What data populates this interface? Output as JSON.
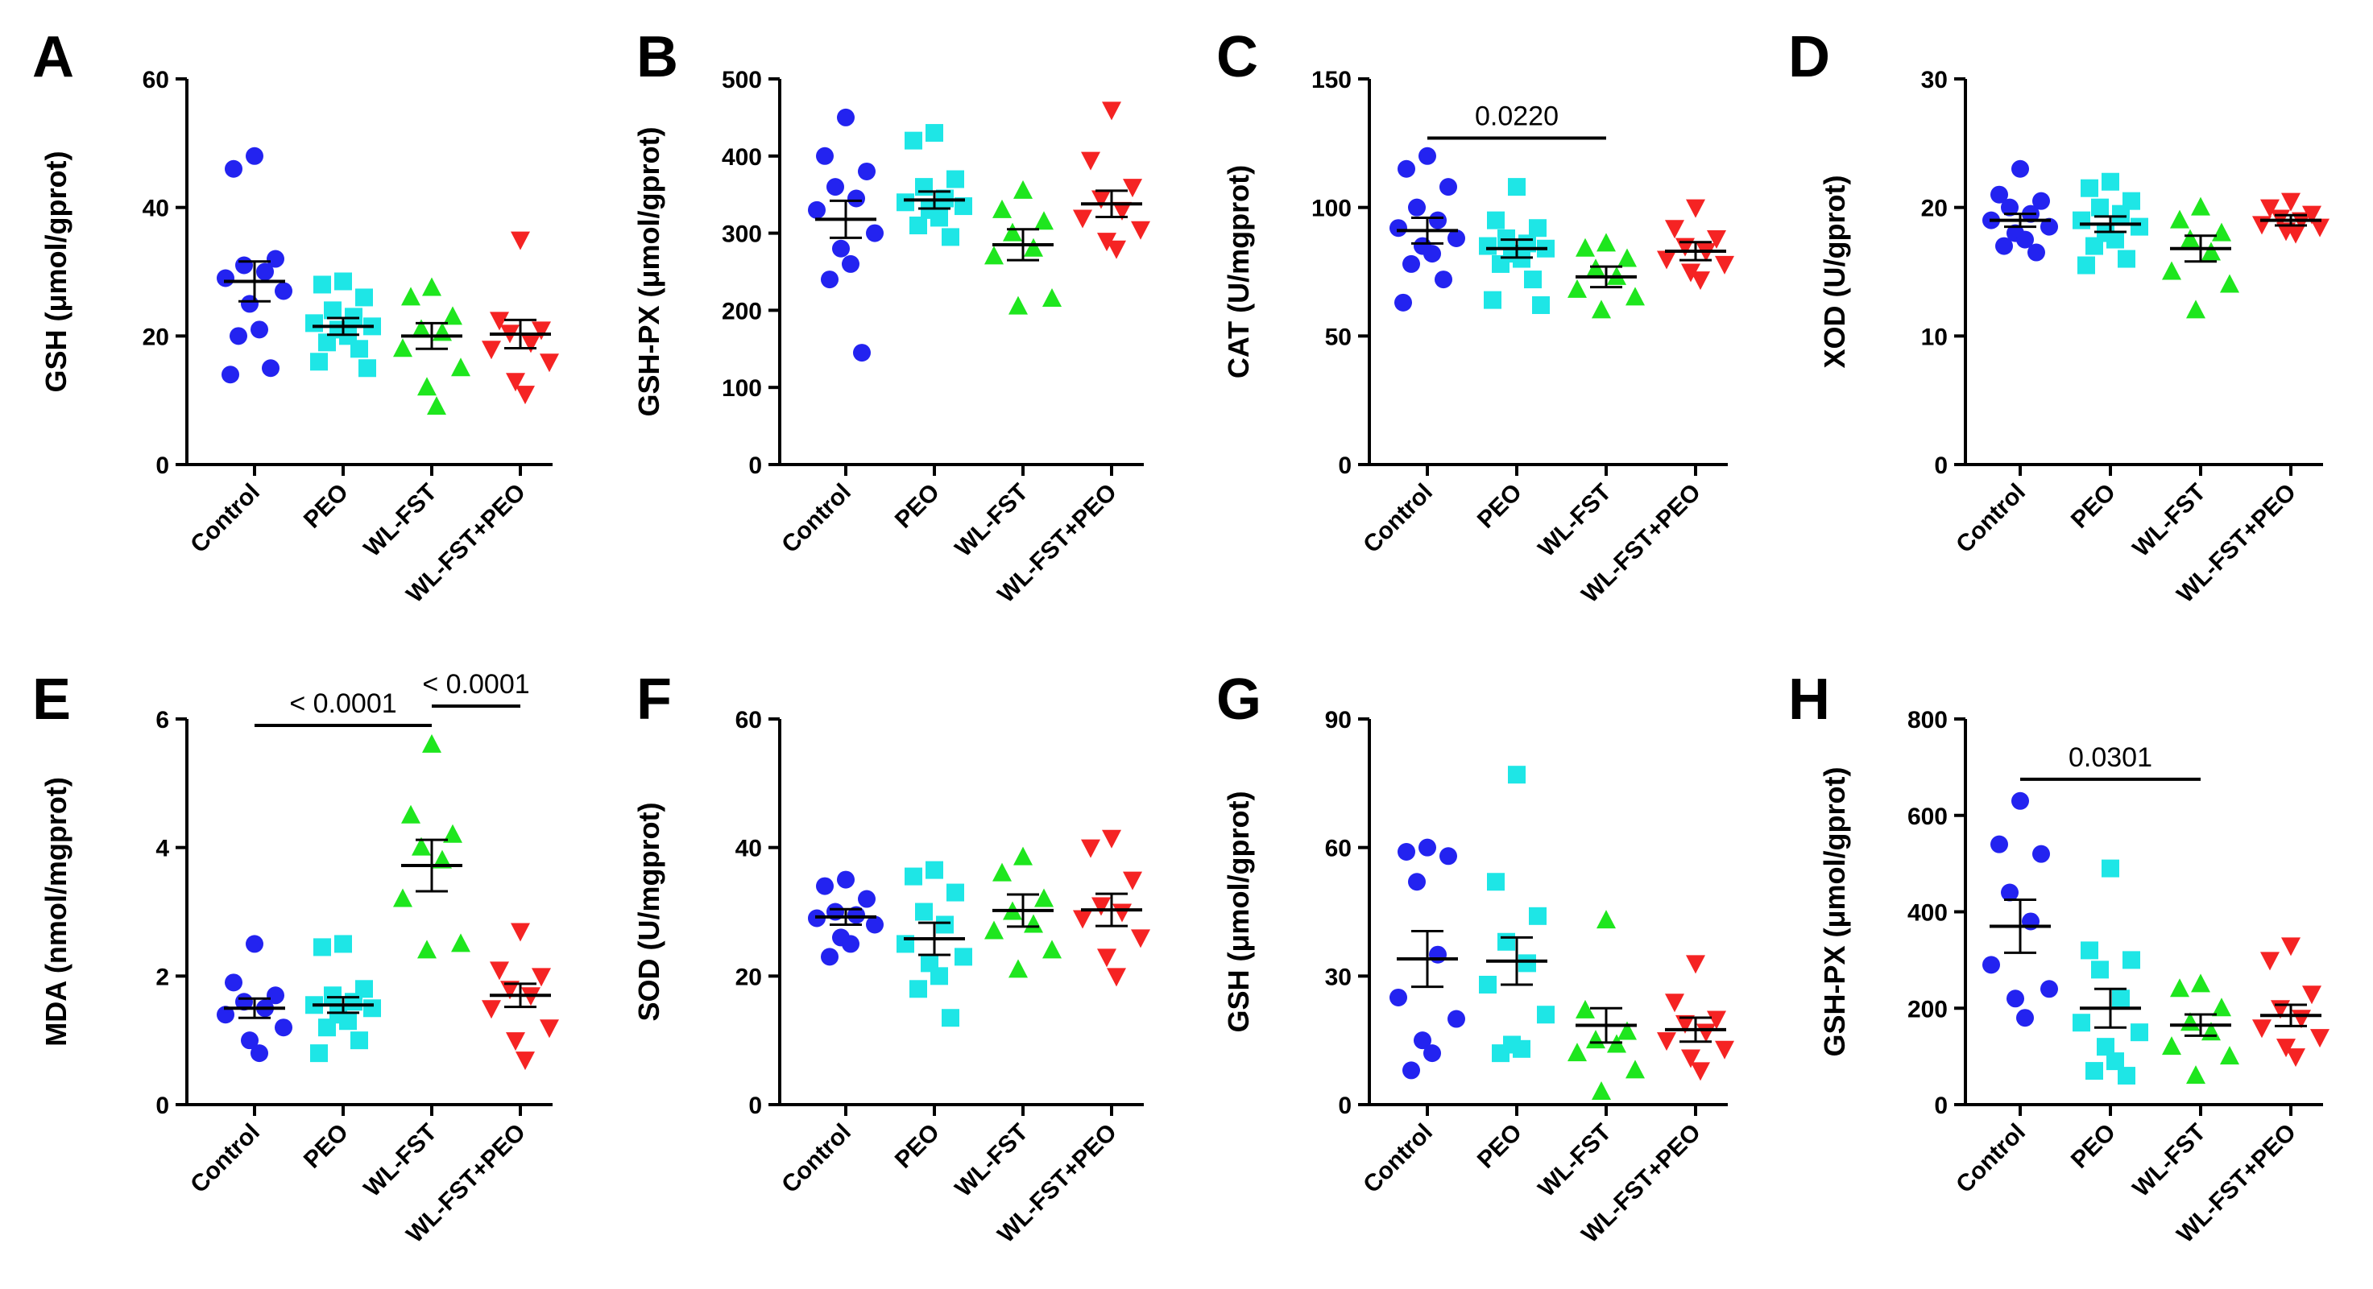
{
  "chart_data": [
    {
      "panel": "A",
      "type": "scatter",
      "ylabel": "GSH (μmol/gprot)",
      "ylim": [
        0,
        60
      ],
      "yticks": [
        0,
        20,
        40,
        60
      ],
      "categories": [
        "Control",
        "PEO",
        "WL-FST",
        "WL-FST+PEO"
      ],
      "series": [
        {
          "name": "Control",
          "marker": "circle",
          "color": "#2323f0",
          "mean": 28.5,
          "sem": 3.1,
          "values": [
            48,
            46,
            32,
            31,
            30,
            29,
            27,
            25,
            21,
            20,
            15,
            14
          ]
        },
        {
          "name": "PEO",
          "marker": "square",
          "color": "#1ee6e6",
          "mean": 21.5,
          "sem": 1.3,
          "values": [
            28.5,
            28,
            26,
            24,
            23,
            22,
            21.5,
            21,
            20,
            19,
            18,
            16,
            15
          ]
        },
        {
          "name": "WL-FST",
          "marker": "triangle-up",
          "color": "#1ee61e",
          "mean": 20,
          "sem": 2,
          "values": [
            27.5,
            26,
            23,
            21,
            20.5,
            18,
            15,
            12,
            9
          ]
        },
        {
          "name": "WL-FST+PEO",
          "marker": "triangle-down",
          "color": "#f52323",
          "mean": 20.3,
          "sem": 2.2,
          "values": [
            35,
            22.5,
            21,
            20.5,
            19,
            18,
            16,
            13,
            11
          ]
        }
      ],
      "significance": []
    },
    {
      "panel": "B",
      "type": "scatter",
      "ylabel": "GSH-PX (μmol/gprot)",
      "ylim": [
        0,
        500
      ],
      "yticks": [
        0,
        100,
        200,
        300,
        400,
        500
      ],
      "categories": [
        "Control",
        "PEO",
        "WL-FST",
        "WL-FST+PEO"
      ],
      "series": [
        {
          "name": "Control",
          "marker": "circle",
          "color": "#2323f0",
          "mean": 318,
          "sem": 24,
          "values": [
            450,
            400,
            380,
            360,
            345,
            330,
            300,
            280,
            260,
            240,
            145
          ]
        },
        {
          "name": "PEO",
          "marker": "square",
          "color": "#1ee6e6",
          "mean": 343,
          "sem": 11,
          "values": [
            430,
            420,
            370,
            360,
            345,
            340,
            335,
            330,
            320,
            310,
            295
          ]
        },
        {
          "name": "WL-FST",
          "marker": "triangle-up",
          "color": "#1ee61e",
          "mean": 285,
          "sem": 20,
          "values": [
            355,
            330,
            315,
            300,
            280,
            270,
            215,
            205
          ]
        },
        {
          "name": "WL-FST+PEO",
          "marker": "triangle-down",
          "color": "#f52323",
          "mean": 338,
          "sem": 17,
          "values": [
            460,
            395,
            360,
            345,
            330,
            320,
            305,
            290,
            280
          ]
        }
      ],
      "significance": []
    },
    {
      "panel": "C",
      "type": "scatter",
      "ylabel": "CAT (U/mgprot)",
      "ylim": [
        0,
        150
      ],
      "yticks": [
        0,
        50,
        100,
        150
      ],
      "categories": [
        "Control",
        "PEO",
        "WL-FST",
        "WL-FST+PEO"
      ],
      "series": [
        {
          "name": "Control",
          "marker": "circle",
          "color": "#2323f0",
          "mean": 91,
          "sem": 5,
          "values": [
            120,
            115,
            108,
            100,
            95,
            92,
            88,
            85,
            82,
            78,
            72,
            63
          ]
        },
        {
          "name": "PEO",
          "marker": "square",
          "color": "#1ee6e6",
          "mean": 84,
          "sem": 3.5,
          "values": [
            108,
            95,
            92,
            88,
            86,
            85,
            84,
            82,
            80,
            78,
            72,
            64,
            62
          ]
        },
        {
          "name": "WL-FST",
          "marker": "triangle-up",
          "color": "#1ee61e",
          "mean": 73,
          "sem": 4,
          "values": [
            86,
            84,
            80,
            76,
            73,
            68,
            65,
            60
          ]
        },
        {
          "name": "WL-FST+PEO",
          "marker": "triangle-down",
          "color": "#f52323",
          "mean": 83,
          "sem": 3.5,
          "values": [
            100,
            92,
            88,
            85,
            83,
            80,
            78,
            75,
            72
          ]
        }
      ],
      "significance": [
        {
          "from": "Control",
          "to": "WL-FST",
          "label": "0.0220",
          "y": 127
        }
      ]
    },
    {
      "panel": "D",
      "type": "scatter",
      "ylabel": "XOD (U/gprot)",
      "ylim": [
        0,
        30
      ],
      "yticks": [
        0,
        10,
        20,
        30
      ],
      "categories": [
        "Control",
        "PEO",
        "WL-FST",
        "WL-FST+PEO"
      ],
      "series": [
        {
          "name": "Control",
          "marker": "circle",
          "color": "#2323f0",
          "mean": 19,
          "sem": 0.5,
          "values": [
            23,
            21,
            20.5,
            20,
            19.5,
            19,
            18.5,
            18,
            17.5,
            17,
            16.5
          ]
        },
        {
          "name": "PEO",
          "marker": "square",
          "color": "#1ee6e6",
          "mean": 18.7,
          "sem": 0.6,
          "values": [
            22,
            21.5,
            20.5,
            20,
            19.5,
            19,
            18.5,
            18,
            17.5,
            17,
            16,
            15.5
          ]
        },
        {
          "name": "WL-FST",
          "marker": "triangle-up",
          "color": "#1ee61e",
          "mean": 16.8,
          "sem": 1,
          "values": [
            20,
            19,
            18,
            17.5,
            16.5,
            15,
            14,
            12
          ]
        },
        {
          "name": "WL-FST+PEO",
          "marker": "triangle-down",
          "color": "#f52323",
          "mean": 19,
          "sem": 0.4,
          "values": [
            20.5,
            20,
            19.5,
            19.2,
            19,
            18.7,
            18.5,
            18.2,
            18
          ]
        }
      ],
      "significance": []
    },
    {
      "panel": "E",
      "type": "scatter",
      "ylabel": "MDA (nmol/mgprot)",
      "ylim": [
        0,
        6
      ],
      "yticks": [
        0,
        2,
        4,
        6
      ],
      "categories": [
        "Control",
        "PEO",
        "WL-FST",
        "WL-FST+PEO"
      ],
      "series": [
        {
          "name": "Control",
          "marker": "circle",
          "color": "#2323f0",
          "mean": 1.5,
          "sem": 0.15,
          "values": [
            2.5,
            1.9,
            1.7,
            1.6,
            1.5,
            1.4,
            1.2,
            1.0,
            0.8
          ]
        },
        {
          "name": "PEO",
          "marker": "square",
          "color": "#1ee6e6",
          "mean": 1.55,
          "sem": 0.12,
          "values": [
            2.5,
            2.45,
            1.8,
            1.7,
            1.6,
            1.55,
            1.5,
            1.4,
            1.3,
            1.2,
            1.0,
            0.8
          ]
        },
        {
          "name": "WL-FST",
          "marker": "triangle-up",
          "color": "#1ee61e",
          "mean": 3.72,
          "sem": 0.4,
          "values": [
            5.6,
            4.5,
            4.2,
            4.0,
            3.8,
            3.2,
            2.5,
            2.4
          ]
        },
        {
          "name": "WL-FST+PEO",
          "marker": "triangle-down",
          "color": "#f52323",
          "mean": 1.7,
          "sem": 0.18,
          "values": [
            2.7,
            2.1,
            2.0,
            1.8,
            1.7,
            1.5,
            1.2,
            1.0,
            0.7
          ]
        }
      ],
      "significance": [
        {
          "from": "Control",
          "to": "WL-FST",
          "label": "< 0.0001",
          "y": 5.9
        },
        {
          "from": "WL-FST",
          "to": "WL-FST+PEO",
          "label": "< 0.0001",
          "y": 6.2
        }
      ]
    },
    {
      "panel": "F",
      "type": "scatter",
      "ylabel": "SOD (U/mgprot)",
      "ylim": [
        0,
        60
      ],
      "yticks": [
        0,
        20,
        40,
        60
      ],
      "categories": [
        "Control",
        "PEO",
        "WL-FST",
        "WL-FST+PEO"
      ],
      "series": [
        {
          "name": "Control",
          "marker": "circle",
          "color": "#2323f0",
          "mean": 29.2,
          "sem": 1.2,
          "values": [
            35,
            34,
            32,
            30,
            29.5,
            29,
            28,
            26,
            25,
            23
          ]
        },
        {
          "name": "PEO",
          "marker": "square",
          "color": "#1ee6e6",
          "mean": 25.8,
          "sem": 2.5,
          "values": [
            36.5,
            35.5,
            33,
            30,
            28,
            25,
            23,
            22,
            20,
            18,
            13.5
          ]
        },
        {
          "name": "WL-FST",
          "marker": "triangle-up",
          "color": "#1ee61e",
          "mean": 30.2,
          "sem": 2.5,
          "values": [
            38.5,
            36,
            32,
            30,
            28,
            27,
            24,
            21
          ]
        },
        {
          "name": "WL-FST+PEO",
          "marker": "triangle-down",
          "color": "#f52323",
          "mean": 30.3,
          "sem": 2.5,
          "values": [
            41.5,
            40,
            35,
            31,
            30,
            29,
            26,
            23,
            20
          ]
        }
      ],
      "significance": []
    },
    {
      "panel": "G",
      "type": "scatter",
      "ylabel": "GSH (μmol/gprot)",
      "ylim": [
        0,
        90
      ],
      "yticks": [
        0,
        30,
        60,
        90
      ],
      "categories": [
        "Control",
        "PEO",
        "WL-FST",
        "WL-FST+PEO"
      ],
      "series": [
        {
          "name": "Control",
          "marker": "circle",
          "color": "#2323f0",
          "mean": 34,
          "sem": 6.5,
          "values": [
            60,
            59,
            58,
            52,
            35,
            25,
            20,
            15,
            12,
            8
          ]
        },
        {
          "name": "PEO",
          "marker": "square",
          "color": "#1ee6e6",
          "mean": 33.5,
          "sem": 5.5,
          "values": [
            77,
            52,
            44,
            38,
            33,
            28,
            21,
            14,
            13,
            12
          ]
        },
        {
          "name": "WL-FST",
          "marker": "triangle-up",
          "color": "#1ee61e",
          "mean": 18.5,
          "sem": 4,
          "values": [
            43,
            22,
            17,
            15,
            14,
            12,
            8,
            3
          ]
        },
        {
          "name": "WL-FST+PEO",
          "marker": "triangle-down",
          "color": "#f52323",
          "mean": 17.5,
          "sem": 2.8,
          "values": [
            33,
            24,
            20,
            19,
            17,
            15,
            13,
            11,
            8
          ]
        }
      ],
      "significance": []
    },
    {
      "panel": "H",
      "type": "scatter",
      "ylabel": "GSH-PX (μmol/gprot)",
      "ylim": [
        0,
        800
      ],
      "yticks": [
        0,
        200,
        400,
        600,
        800
      ],
      "categories": [
        "Control",
        "PEO",
        "WL-FST",
        "WL-FST+PEO"
      ],
      "series": [
        {
          "name": "Control",
          "marker": "circle",
          "color": "#2323f0",
          "mean": 370,
          "sem": 55,
          "values": [
            630,
            540,
            520,
            440,
            380,
            290,
            240,
            220,
            180
          ]
        },
        {
          "name": "PEO",
          "marker": "square",
          "color": "#1ee6e6",
          "mean": 200,
          "sem": 40,
          "values": [
            490,
            320,
            300,
            280,
            220,
            170,
            150,
            120,
            90,
            70,
            60
          ]
        },
        {
          "name": "WL-FST",
          "marker": "triangle-up",
          "color": "#1ee61e",
          "mean": 165,
          "sem": 22,
          "values": [
            250,
            240,
            200,
            170,
            150,
            120,
            100,
            60
          ]
        },
        {
          "name": "WL-FST+PEO",
          "marker": "triangle-down",
          "color": "#f52323",
          "mean": 185,
          "sem": 22,
          "values": [
            330,
            300,
            230,
            200,
            180,
            160,
            140,
            120,
            100
          ]
        }
      ],
      "significance": [
        {
          "from": "Control",
          "to": "WL-FST",
          "label": "0.0301",
          "y": 675
        }
      ]
    }
  ]
}
